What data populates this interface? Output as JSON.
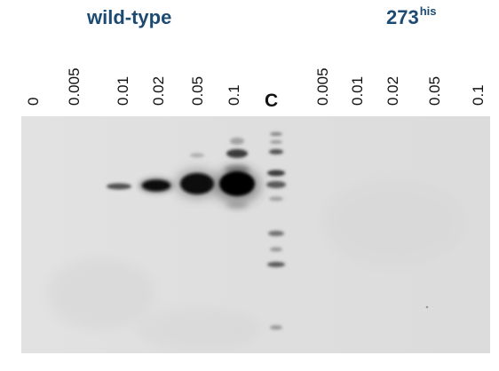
{
  "groups": {
    "wild_type": "wild-type",
    "mutant_base": "273",
    "mutant_sup": "his"
  },
  "lanes": {
    "wild_type": [
      "0",
      "0.005",
      "0.01",
      "0.02",
      "0.05",
      "0.1"
    ],
    "control": "C",
    "mutant": [
      "0.005",
      "0.01",
      "0.02",
      "0.05",
      "0.1"
    ]
  },
  "colors": {
    "title": "#1c4a72",
    "membrane": "#dcdcdc",
    "band": "#0a0a0a"
  }
}
